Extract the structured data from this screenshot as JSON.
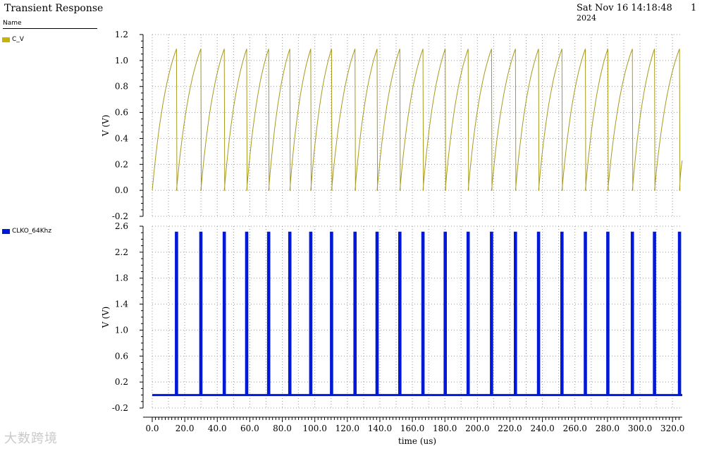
{
  "header": {
    "title": "Transient Response",
    "timestamp": "Sat Nov 16 14:18:48",
    "timestamp_cont": "2024",
    "page_number": "1"
  },
  "legend": {
    "header": "Name",
    "items": [
      {
        "label": "C_V",
        "color": "#c8b400"
      },
      {
        "label": "CLKO_64Khz",
        "color": "#0018d8"
      }
    ]
  },
  "watermark": "大数跨境",
  "chart_data": [
    {
      "type": "line",
      "series": [
        {
          "name": "C_V",
          "color": "#a89a1c"
        }
      ],
      "ylabel": "V (V)",
      "ylim": [
        -0.2,
        1.2
      ],
      "yticks": [
        "1.2",
        "1.0",
        "0.8",
        "0.6",
        "0.4",
        "0.2",
        "0.0",
        "-0.2"
      ],
      "waveform": "sawtooth",
      "low": 0.0,
      "peak": 1.09,
      "reset_times_us": [
        14.9,
        29.9,
        44.3,
        58.1,
        71.6,
        84.6,
        97.5,
        110.3,
        124.7,
        138.3,
        152.3,
        166.5,
        180.2,
        194.3,
        208.7,
        223.4,
        237.6,
        252.0,
        266.4,
        280.2,
        295.3,
        308.9,
        324.3
      ],
      "end_time_us": 326,
      "end_value": 0.23,
      "grid": true
    },
    {
      "type": "line",
      "series": [
        {
          "name": "CLKO_64Khz",
          "color": "#0018d8"
        }
      ],
      "ylabel": "V (V)",
      "xlabel": "time (us)",
      "ylim": [
        -0.2,
        2.6
      ],
      "yticks": [
        "2.6",
        "2.2",
        "1.8",
        "1.4",
        "1.0",
        "0.6",
        "0.2",
        "-0.2"
      ],
      "xlim": [
        0,
        326
      ],
      "xticks": [
        "0.0",
        "20.0",
        "40.0",
        "60.0",
        "80.0",
        "100.0",
        "120.0",
        "140.0",
        "160.0",
        "180.0",
        "200.0",
        "220.0",
        "240.0",
        "260.0",
        "280.0",
        "300.0",
        "320.0"
      ],
      "waveform": "pulse",
      "low": 0.0,
      "high": 2.5,
      "pulse_times_us": [
        14.9,
        29.9,
        44.3,
        58.1,
        71.6,
        84.6,
        97.5,
        110.3,
        124.7,
        138.3,
        152.3,
        166.5,
        180.2,
        194.3,
        208.7,
        223.4,
        237.6,
        252.0,
        266.4,
        280.2,
        295.3,
        308.9,
        324.3
      ],
      "grid": true
    }
  ]
}
